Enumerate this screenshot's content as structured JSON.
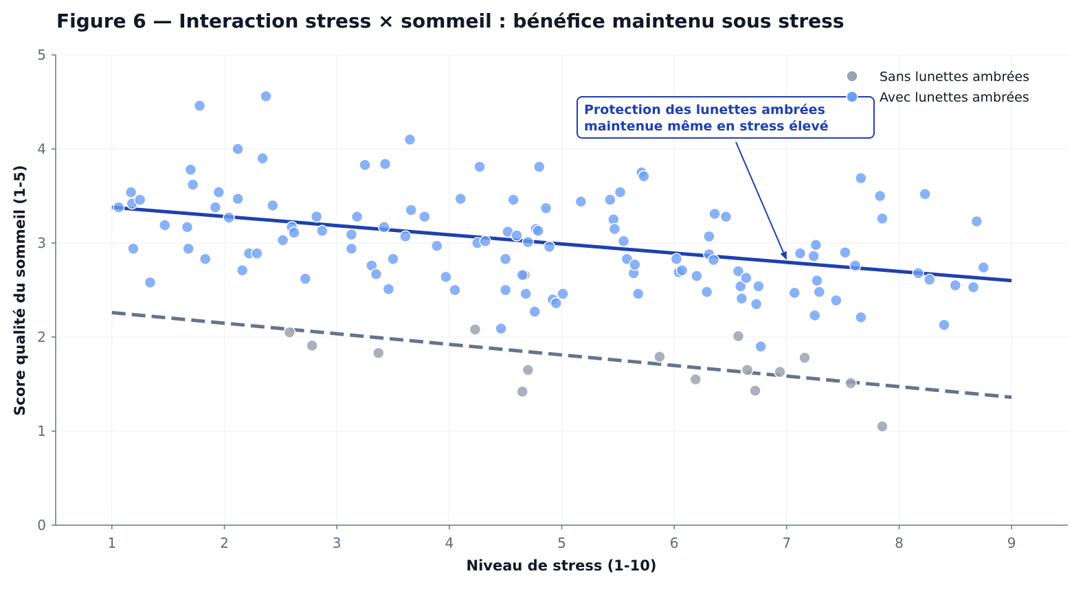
{
  "chart_data": {
    "type": "scatter",
    "title": "Figure 6 — Interaction stress × sommeil : bénéfice maintenu sous stress",
    "xlabel": "Niveau de stress (1-10)",
    "ylabel": "Score qualité du sommeil (1-5)",
    "xlim": [
      0.5,
      9.5
    ],
    "ylim": [
      0,
      5
    ],
    "xticks": [
      "1",
      "2",
      "3",
      "4",
      "5",
      "6",
      "7",
      "8",
      "9"
    ],
    "yticks": [
      "0",
      "1",
      "2",
      "3",
      "4",
      "5"
    ],
    "grid": true,
    "legend_position": "top-right",
    "series": [
      {
        "name": "Sans lunettes ambrées",
        "color": "#9ca3af",
        "points": [
          [
            2.58,
            2.05
          ],
          [
            2.78,
            1.91
          ],
          [
            3.37,
            1.83
          ],
          [
            4.23,
            2.08
          ],
          [
            4.65,
            1.42
          ],
          [
            4.67,
            2.66
          ],
          [
            4.7,
            1.65
          ],
          [
            5.87,
            1.79
          ],
          [
            6.19,
            1.55
          ],
          [
            6.57,
            2.01
          ],
          [
            6.65,
            1.65
          ],
          [
            6.72,
            1.43
          ],
          [
            6.94,
            1.63
          ],
          [
            7.16,
            1.78
          ],
          [
            7.57,
            1.51
          ],
          [
            7.85,
            1.05
          ]
        ],
        "trend": {
          "style": "dashed",
          "color": "#64748b",
          "x": [
            1,
            9
          ],
          "y": [
            2.26,
            1.36
          ]
        }
      },
      {
        "name": "Avec lunettes ambrées",
        "color": "#6b9ef5",
        "points": [
          [
            1.06,
            3.38
          ],
          [
            1.17,
            3.54
          ],
          [
            1.18,
            3.42
          ],
          [
            1.19,
            2.94
          ],
          [
            1.25,
            3.46
          ],
          [
            1.34,
            2.58
          ],
          [
            1.47,
            3.19
          ],
          [
            1.67,
            3.17
          ],
          [
            1.68,
            2.94
          ],
          [
            1.7,
            3.78
          ],
          [
            1.72,
            3.62
          ],
          [
            1.78,
            4.46
          ],
          [
            1.83,
            2.83
          ],
          [
            1.92,
            3.38
          ],
          [
            1.95,
            3.54
          ],
          [
            2.04,
            3.27
          ],
          [
            2.12,
            4.0
          ],
          [
            2.12,
            3.47
          ],
          [
            2.16,
            2.71
          ],
          [
            2.22,
            2.89
          ],
          [
            2.29,
            2.89
          ],
          [
            2.34,
            3.9
          ],
          [
            2.37,
            4.56
          ],
          [
            2.43,
            3.4
          ],
          [
            2.52,
            3.03
          ],
          [
            2.6,
            3.17
          ],
          [
            2.62,
            3.11
          ],
          [
            2.72,
            2.62
          ],
          [
            2.82,
            3.28
          ],
          [
            2.87,
            3.13
          ],
          [
            3.13,
            3.09
          ],
          [
            3.13,
            2.94
          ],
          [
            3.18,
            3.28
          ],
          [
            3.25,
            3.83
          ],
          [
            3.31,
            2.76
          ],
          [
            3.35,
            2.67
          ],
          [
            3.42,
            3.17
          ],
          [
            3.43,
            3.84
          ],
          [
            3.46,
            2.51
          ],
          [
            3.5,
            2.83
          ],
          [
            3.61,
            3.07
          ],
          [
            3.65,
            4.1
          ],
          [
            3.66,
            3.35
          ],
          [
            3.78,
            3.28
          ],
          [
            3.89,
            2.97
          ],
          [
            3.97,
            2.64
          ],
          [
            4.05,
            2.5
          ],
          [
            4.1,
            3.47
          ],
          [
            4.25,
            3.0
          ],
          [
            4.27,
            3.81
          ],
          [
            4.32,
            3.02
          ],
          [
            4.46,
            2.09
          ],
          [
            4.5,
            2.83
          ],
          [
            4.5,
            2.5
          ],
          [
            4.52,
            3.12
          ],
          [
            4.57,
            3.46
          ],
          [
            4.6,
            3.08
          ],
          [
            4.65,
            2.66
          ],
          [
            4.68,
            2.46
          ],
          [
            4.7,
            3.01
          ],
          [
            4.76,
            2.27
          ],
          [
            4.77,
            3.15
          ],
          [
            4.79,
            3.13
          ],
          [
            4.8,
            3.81
          ],
          [
            4.86,
            3.37
          ],
          [
            4.89,
            2.96
          ],
          [
            4.92,
            2.4
          ],
          [
            4.95,
            2.36
          ],
          [
            5.01,
            2.46
          ],
          [
            5.17,
            3.44
          ],
          [
            5.43,
            3.46
          ],
          [
            5.46,
            3.25
          ],
          [
            5.47,
            3.15
          ],
          [
            5.52,
            3.54
          ],
          [
            5.55,
            3.02
          ],
          [
            5.58,
            2.83
          ],
          [
            5.64,
            2.68
          ],
          [
            5.65,
            2.77
          ],
          [
            5.68,
            2.46
          ],
          [
            5.71,
            3.75
          ],
          [
            5.73,
            3.71
          ],
          [
            6.02,
            2.83
          ],
          [
            6.04,
            2.69
          ],
          [
            6.07,
            2.71
          ],
          [
            6.2,
            2.65
          ],
          [
            6.29,
            2.48
          ],
          [
            6.31,
            3.07
          ],
          [
            6.31,
            2.88
          ],
          [
            6.35,
            2.82
          ],
          [
            6.36,
            3.31
          ],
          [
            6.46,
            3.28
          ],
          [
            6.57,
            2.7
          ],
          [
            6.59,
            2.54
          ],
          [
            6.6,
            2.41
          ],
          [
            6.64,
            2.63
          ],
          [
            6.73,
            2.35
          ],
          [
            6.75,
            2.54
          ],
          [
            6.77,
            1.9
          ],
          [
            7.07,
            2.47
          ],
          [
            7.12,
            2.89
          ],
          [
            7.24,
            2.86
          ],
          [
            7.25,
            2.23
          ],
          [
            7.26,
            2.98
          ],
          [
            7.27,
            2.6
          ],
          [
            7.29,
            2.48
          ],
          [
            7.44,
            2.39
          ],
          [
            7.52,
            2.9
          ],
          [
            7.58,
            4.55
          ],
          [
            7.61,
            2.76
          ],
          [
            7.66,
            3.69
          ],
          [
            7.66,
            2.21
          ],
          [
            7.83,
            3.5
          ],
          [
            7.85,
            3.26
          ],
          [
            8.17,
            2.68
          ],
          [
            8.23,
            3.52
          ],
          [
            8.27,
            2.61
          ],
          [
            8.4,
            2.13
          ],
          [
            8.5,
            2.55
          ],
          [
            8.66,
            2.53
          ],
          [
            8.69,
            3.23
          ],
          [
            8.75,
            2.74
          ]
        ],
        "trend": {
          "style": "solid",
          "color": "#1e40af",
          "x": [
            1,
            9
          ],
          "y": [
            3.38,
            2.6
          ]
        }
      }
    ],
    "annotation": {
      "lines": [
        "Protection des lunettes ambrées",
        "maintenue même en stress élevé"
      ],
      "arrow_to": [
        7.0,
        2.82
      ],
      "color": "#1e40af"
    }
  }
}
